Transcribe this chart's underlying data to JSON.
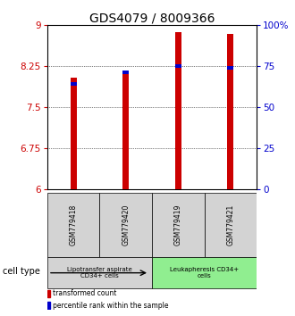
{
  "title": "GDS4079 / 8009366",
  "samples": [
    "GSM779418",
    "GSM779420",
    "GSM779419",
    "GSM779421"
  ],
  "red_values": [
    8.05,
    8.18,
    8.88,
    8.85
  ],
  "blue_values": [
    7.93,
    8.14,
    8.25,
    8.22
  ],
  "ylim_left": [
    6,
    9
  ],
  "ylim_right": [
    0,
    100
  ],
  "yticks_left": [
    6,
    6.75,
    7.5,
    8.25,
    9
  ],
  "yticks_right": [
    0,
    25,
    50,
    75,
    100
  ],
  "ytick_labels_right": [
    "0",
    "25",
    "50",
    "75",
    "100%"
  ],
  "bar_bottom": 6,
  "bar_width": 0.12,
  "group_labels": [
    "Lipotransfer aspirate\nCD34+ cells",
    "Leukapheresis CD34+\ncells"
  ],
  "group_colors": [
    "#d3d3d3",
    "#90ee90"
  ],
  "group_ranges": [
    [
      0,
      2
    ],
    [
      2,
      4
    ]
  ],
  "title_fontsize": 10,
  "tick_fontsize": 7.5,
  "red_color": "#cc0000",
  "blue_color": "#0000cc",
  "bg_color": "#ffffff",
  "cell_type_label": "cell type"
}
